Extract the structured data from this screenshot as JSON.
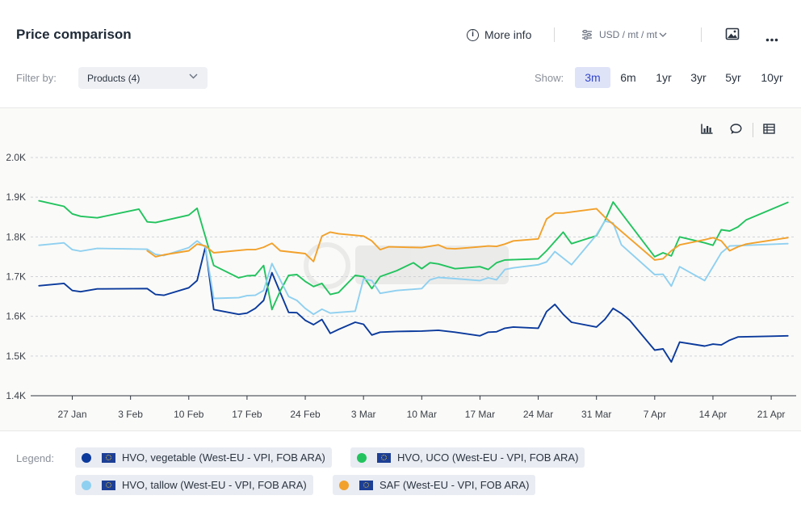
{
  "header": {
    "title": "Price comparison",
    "more_info": "More info",
    "unit": "USD / mt / mt"
  },
  "filter": {
    "label": "Filter by:",
    "value": "Products (4)"
  },
  "show": {
    "label": "Show:",
    "ranges": [
      "3m",
      "6m",
      "1yr",
      "3yr",
      "5yr",
      "10yr"
    ],
    "active": "3m"
  },
  "legend": {
    "label": "Legend:",
    "items": [
      {
        "name": "HVO, vegetable (West-EU - VPI, FOB ARA)",
        "color": "#0b3a9c"
      },
      {
        "name": "HVO, UCO (West-EU - VPI, FOB ARA)",
        "color": "#22c35e"
      },
      {
        "name": "HVO, tallow (West-EU - VPI, FOB ARA)",
        "color": "#8fd0f0"
      },
      {
        "name": "SAF (West-EU - VPI, FOB ARA)",
        "color": "#f2a12b"
      }
    ]
  },
  "chart_data": {
    "type": "line",
    "xlabel": "",
    "ylabel": "",
    "ylim": [
      1400,
      2000
    ],
    "y_ticks": [
      1400,
      1500,
      1600,
      1700,
      1800,
      1900,
      2000
    ],
    "y_tick_labels": [
      "1.4K",
      "1.5K",
      "1.6K",
      "1.7K",
      "1.8K",
      "1.9K",
      "2.0K"
    ],
    "x_range": [
      "2025-01-22",
      "2025-04-24"
    ],
    "x_ticks": [
      "2025-01-27",
      "2025-02-03",
      "2025-02-10",
      "2025-02-17",
      "2025-02-24",
      "2025-03-03",
      "2025-03-10",
      "2025-03-17",
      "2025-03-24",
      "2025-03-31",
      "2025-04-07",
      "2025-04-14",
      "2025-04-21"
    ],
    "x_tick_labels": [
      "27 Jan",
      "3 Feb",
      "10 Feb",
      "17 Feb",
      "24 Feb",
      "3 Mar",
      "10 Mar",
      "17 Mar",
      "24 Mar",
      "31 Mar",
      "7 Apr",
      "14 Apr",
      "21 Apr"
    ],
    "grid": true,
    "legend": "bottom",
    "series": [
      {
        "name": "HVO, vegetable (West-EU - VPI, FOB ARA)",
        "color": "#0b3a9c",
        "points": [
          [
            "2025-01-23",
            1677
          ],
          [
            "2025-01-26",
            1683
          ],
          [
            "2025-01-27",
            1665
          ],
          [
            "2025-01-28",
            1662
          ],
          [
            "2025-01-30",
            1669
          ],
          [
            "2025-02-05",
            1670
          ],
          [
            "2025-02-06",
            1655
          ],
          [
            "2025-02-07",
            1653
          ],
          [
            "2025-02-10",
            1672
          ],
          [
            "2025-02-11",
            1690
          ],
          [
            "2025-02-12",
            1775
          ],
          [
            "2025-02-13",
            1617
          ],
          [
            "2025-02-16",
            1605
          ],
          [
            "2025-02-17",
            1608
          ],
          [
            "2025-02-18",
            1620
          ],
          [
            "2025-02-19",
            1640
          ],
          [
            "2025-02-20",
            1710
          ],
          [
            "2025-02-22",
            1610
          ],
          [
            "2025-02-23",
            1609
          ],
          [
            "2025-02-24",
            1590
          ],
          [
            "2025-02-25",
            1579
          ],
          [
            "2025-02-26",
            1592
          ],
          [
            "2025-02-27",
            1557
          ],
          [
            "2025-02-28",
            1567
          ],
          [
            "2025-03-02",
            1585
          ],
          [
            "2025-03-03",
            1580
          ],
          [
            "2025-03-04",
            1553
          ],
          [
            "2025-03-05",
            1560
          ],
          [
            "2025-03-07",
            1562
          ],
          [
            "2025-03-10",
            1563
          ],
          [
            "2025-03-12",
            1565
          ],
          [
            "2025-03-14",
            1560
          ],
          [
            "2025-03-17",
            1551
          ],
          [
            "2025-03-18",
            1560
          ],
          [
            "2025-03-19",
            1561
          ],
          [
            "2025-03-20",
            1570
          ],
          [
            "2025-03-21",
            1573
          ],
          [
            "2025-03-24",
            1570
          ],
          [
            "2025-03-25",
            1612
          ],
          [
            "2025-03-26",
            1630
          ],
          [
            "2025-03-27",
            1605
          ],
          [
            "2025-03-28",
            1585
          ],
          [
            "2025-03-31",
            1573
          ],
          [
            "2025-04-01",
            1592
          ],
          [
            "2025-04-02",
            1620
          ],
          [
            "2025-04-03",
            1607
          ],
          [
            "2025-04-04",
            1590
          ],
          [
            "2025-04-07",
            1515
          ],
          [
            "2025-04-08",
            1518
          ],
          [
            "2025-04-09",
            1485
          ],
          [
            "2025-04-10",
            1535
          ],
          [
            "2025-04-13",
            1525
          ],
          [
            "2025-04-14",
            1530
          ],
          [
            "2025-04-15",
            1528
          ],
          [
            "2025-04-16",
            1540
          ],
          [
            "2025-04-17",
            1548
          ],
          [
            "2025-04-21",
            1550
          ],
          [
            "2025-04-23",
            1551
          ]
        ]
      },
      {
        "name": "HVO, UCO (West-EU - VPI, FOB ARA)",
        "color": "#22c35e",
        "points": [
          [
            "2025-01-23",
            1891
          ],
          [
            "2025-01-26",
            1877
          ],
          [
            "2025-01-27",
            1858
          ],
          [
            "2025-01-28",
            1852
          ],
          [
            "2025-01-30",
            1848
          ],
          [
            "2025-02-04",
            1870
          ],
          [
            "2025-02-05",
            1838
          ],
          [
            "2025-02-06",
            1836
          ],
          [
            "2025-02-10",
            1855
          ],
          [
            "2025-02-11",
            1872
          ],
          [
            "2025-02-12",
            1800
          ],
          [
            "2025-02-13",
            1728
          ],
          [
            "2025-02-16",
            1697
          ],
          [
            "2025-02-17",
            1702
          ],
          [
            "2025-02-18",
            1703
          ],
          [
            "2025-02-19",
            1728
          ],
          [
            "2025-02-20",
            1617
          ],
          [
            "2025-02-21",
            1664
          ],
          [
            "2025-02-22",
            1703
          ],
          [
            "2025-02-23",
            1705
          ],
          [
            "2025-02-24",
            1688
          ],
          [
            "2025-02-25",
            1675
          ],
          [
            "2025-02-26",
            1683
          ],
          [
            "2025-02-27",
            1655
          ],
          [
            "2025-02-28",
            1660
          ],
          [
            "2025-03-02",
            1703
          ],
          [
            "2025-03-03",
            1700
          ],
          [
            "2025-03-04",
            1670
          ],
          [
            "2025-03-05",
            1700
          ],
          [
            "2025-03-07",
            1715
          ],
          [
            "2025-03-09",
            1735
          ],
          [
            "2025-03-10",
            1720
          ],
          [
            "2025-03-11",
            1735
          ],
          [
            "2025-03-12",
            1732
          ],
          [
            "2025-03-14",
            1720
          ],
          [
            "2025-03-17",
            1725
          ],
          [
            "2025-03-18",
            1718
          ],
          [
            "2025-03-19",
            1735
          ],
          [
            "2025-03-20",
            1742
          ],
          [
            "2025-03-24",
            1745
          ],
          [
            "2025-03-25",
            1765
          ],
          [
            "2025-03-27",
            1812
          ],
          [
            "2025-03-28",
            1783
          ],
          [
            "2025-03-31",
            1803
          ],
          [
            "2025-04-01",
            1840
          ],
          [
            "2025-04-02",
            1888
          ],
          [
            "2025-04-03",
            1860
          ],
          [
            "2025-04-07",
            1750
          ],
          [
            "2025-04-08",
            1760
          ],
          [
            "2025-04-09",
            1752
          ],
          [
            "2025-04-10",
            1800
          ],
          [
            "2025-04-13",
            1785
          ],
          [
            "2025-04-14",
            1779
          ],
          [
            "2025-04-15",
            1818
          ],
          [
            "2025-04-16",
            1815
          ],
          [
            "2025-04-17",
            1825
          ],
          [
            "2025-04-18",
            1843
          ],
          [
            "2025-04-23",
            1887
          ]
        ]
      },
      {
        "name": "HVO, tallow (West-EU - VPI, FOB ARA)",
        "color": "#8fd0f0",
        "points": [
          [
            "2025-01-23",
            1779
          ],
          [
            "2025-01-26",
            1785
          ],
          [
            "2025-01-27",
            1768
          ],
          [
            "2025-01-28",
            1764
          ],
          [
            "2025-01-30",
            1771
          ],
          [
            "2025-02-05",
            1769
          ],
          [
            "2025-02-06",
            1756
          ],
          [
            "2025-02-07",
            1753
          ],
          [
            "2025-02-10",
            1773
          ],
          [
            "2025-02-11",
            1790
          ],
          [
            "2025-02-12",
            1774
          ],
          [
            "2025-02-13",
            1645
          ],
          [
            "2025-02-16",
            1647
          ],
          [
            "2025-02-17",
            1652
          ],
          [
            "2025-02-18",
            1653
          ],
          [
            "2025-02-19",
            1665
          ],
          [
            "2025-02-20",
            1733
          ],
          [
            "2025-02-22",
            1650
          ],
          [
            "2025-02-23",
            1640
          ],
          [
            "2025-02-24",
            1620
          ],
          [
            "2025-02-25",
            1605
          ],
          [
            "2025-02-26",
            1618
          ],
          [
            "2025-02-27",
            1608
          ],
          [
            "2025-02-28",
            1610
          ],
          [
            "2025-03-02",
            1613
          ],
          [
            "2025-03-03",
            1694
          ],
          [
            "2025-03-04",
            1690
          ],
          [
            "2025-03-05",
            1658
          ],
          [
            "2025-03-07",
            1665
          ],
          [
            "2025-03-10",
            1670
          ],
          [
            "2025-03-11",
            1692
          ],
          [
            "2025-03-12",
            1698
          ],
          [
            "2025-03-14",
            1695
          ],
          [
            "2025-03-17",
            1690
          ],
          [
            "2025-03-18",
            1697
          ],
          [
            "2025-03-19",
            1692
          ],
          [
            "2025-03-20",
            1718
          ],
          [
            "2025-03-21",
            1722
          ],
          [
            "2025-03-24",
            1730
          ],
          [
            "2025-03-25",
            1737
          ],
          [
            "2025-03-26",
            1763
          ],
          [
            "2025-03-28",
            1730
          ],
          [
            "2025-03-31",
            1805
          ],
          [
            "2025-04-01",
            1840
          ],
          [
            "2025-04-02",
            1835
          ],
          [
            "2025-04-03",
            1780
          ],
          [
            "2025-04-07",
            1705
          ],
          [
            "2025-04-08",
            1706
          ],
          [
            "2025-04-09",
            1676
          ],
          [
            "2025-04-10",
            1725
          ],
          [
            "2025-04-13",
            1690
          ],
          [
            "2025-04-14",
            1725
          ],
          [
            "2025-04-15",
            1760
          ],
          [
            "2025-04-16",
            1777
          ],
          [
            "2025-04-23",
            1783
          ]
        ]
      },
      {
        "name": "SAF (West-EU - VPI, FOB ARA)",
        "color": "#f2a12b",
        "points": [
          [
            "2025-02-05",
            1765
          ],
          [
            "2025-02-06",
            1750
          ],
          [
            "2025-02-07",
            1755
          ],
          [
            "2025-02-10",
            1765
          ],
          [
            "2025-02-11",
            1782
          ],
          [
            "2025-02-12",
            1777
          ],
          [
            "2025-02-13",
            1760
          ],
          [
            "2025-02-17",
            1768
          ],
          [
            "2025-02-18",
            1768
          ],
          [
            "2025-02-19",
            1774
          ],
          [
            "2025-02-20",
            1784
          ],
          [
            "2025-02-21",
            1765
          ],
          [
            "2025-02-24",
            1758
          ],
          [
            "2025-02-25",
            1738
          ],
          [
            "2025-02-26",
            1802
          ],
          [
            "2025-02-27",
            1812
          ],
          [
            "2025-02-28",
            1808
          ],
          [
            "2025-03-03",
            1802
          ],
          [
            "2025-03-04",
            1790
          ],
          [
            "2025-03-05",
            1768
          ],
          [
            "2025-03-06",
            1775
          ],
          [
            "2025-03-10",
            1773
          ],
          [
            "2025-03-12",
            1780
          ],
          [
            "2025-03-13",
            1771
          ],
          [
            "2025-03-14",
            1770
          ],
          [
            "2025-03-17",
            1775
          ],
          [
            "2025-03-18",
            1777
          ],
          [
            "2025-03-19",
            1776
          ],
          [
            "2025-03-20",
            1782
          ],
          [
            "2025-03-21",
            1790
          ],
          [
            "2025-03-24",
            1795
          ],
          [
            "2025-03-25",
            1845
          ],
          [
            "2025-03-26",
            1860
          ],
          [
            "2025-03-27",
            1860
          ],
          [
            "2025-03-31",
            1871
          ],
          [
            "2025-04-01",
            1850
          ],
          [
            "2025-04-07",
            1742
          ],
          [
            "2025-04-08",
            1745
          ],
          [
            "2025-04-09",
            1765
          ],
          [
            "2025-04-10",
            1780
          ],
          [
            "2025-04-13",
            1793
          ],
          [
            "2025-04-14",
            1798
          ],
          [
            "2025-04-15",
            1790
          ],
          [
            "2025-04-16",
            1765
          ],
          [
            "2025-04-17",
            1775
          ],
          [
            "2025-04-18",
            1782
          ],
          [
            "2025-04-23",
            1798
          ]
        ]
      }
    ]
  }
}
